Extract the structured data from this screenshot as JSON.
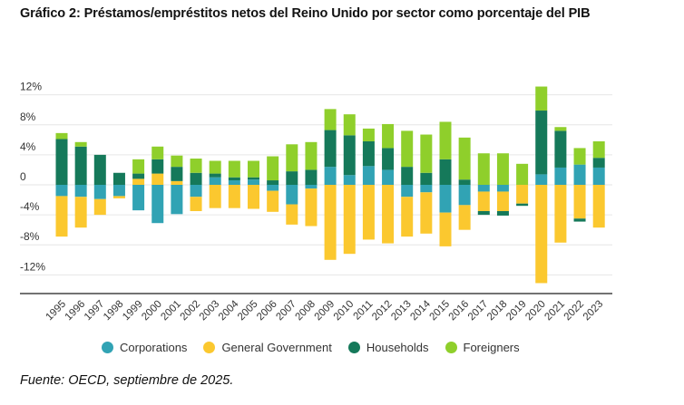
{
  "title": "Gráfico 2: Préstamos/empréstitos netos del Reino Unido por sector como porcentaje del PIB",
  "source": "Fuente: OECD, septiembre de 2025.",
  "colors": {
    "Corporations": "#31a3b4",
    "General Government": "#fbc82f",
    "Households": "#15795a",
    "Foreigners": "#8fcf2b",
    "grid": "#e6e6e6",
    "axis": "#444444"
  },
  "legend": [
    {
      "label": "Corporations",
      "key": "Corporations"
    },
    {
      "label": "General Government",
      "key": "General Government"
    },
    {
      "label": "Households",
      "key": "Households"
    },
    {
      "label": "Foreigners",
      "key": "Foreigners"
    }
  ],
  "chart_data": {
    "type": "bar",
    "stacked": true,
    "title": "Gráfico 2: Préstamos/empréstitos netos del Reino Unido por sector como porcentaje del PIB",
    "xlabel": "",
    "ylabel": "",
    "ylim": [
      -14,
      14
    ],
    "yticks": [
      12,
      8,
      4,
      0,
      -4,
      -8,
      -12
    ],
    "ytick_labels": [
      "12%",
      "8%",
      "4%",
      "0",
      "-4%",
      "-8%",
      "-12%"
    ],
    "grid": true,
    "legend_position": "bottom",
    "categories": [
      "1995",
      "1996",
      "1997",
      "1998",
      "1999",
      "2000",
      "2001",
      "2002",
      "2003",
      "2004",
      "2005",
      "2006",
      "2007",
      "2008",
      "2009",
      "2010",
      "2011",
      "2012",
      "2013",
      "2014",
      "2015",
      "2016",
      "2017",
      "2018",
      "2019",
      "2020",
      "2021",
      "2022",
      "2023"
    ],
    "series": [
      {
        "name": "Corporations",
        "values": [
          -1.5,
          -1.6,
          -1.9,
          -1.5,
          -3.4,
          -5.1,
          -3.9,
          -1.6,
          1.0,
          0.6,
          0.7,
          -0.8,
          -2.6,
          -0.5,
          2.4,
          1.3,
          2.5,
          2.0,
          -1.6,
          -1.0,
          -3.7,
          -2.7,
          -0.9,
          -0.9,
          0.0,
          1.4,
          2.3,
          2.7,
          2.3
        ]
      },
      {
        "name": "General Government",
        "values": [
          -5.4,
          -4.1,
          -2.1,
          -0.3,
          0.8,
          1.5,
          0.5,
          -1.9,
          -3.1,
          -3.1,
          -3.2,
          -2.8,
          -2.7,
          -5.0,
          -10.0,
          -9.2,
          -7.3,
          -7.8,
          -5.3,
          -5.5,
          -4.5,
          -3.3,
          -2.6,
          -2.6,
          -2.5,
          -13.1,
          -7.7,
          -4.5,
          -5.7
        ]
      },
      {
        "name": "Households",
        "values": [
          6.1,
          5.1,
          4.0,
          1.6,
          0.7,
          1.9,
          1.9,
          1.6,
          0.5,
          0.4,
          0.3,
          0.6,
          1.8,
          2.0,
          4.9,
          5.3,
          3.3,
          2.9,
          2.4,
          1.6,
          3.4,
          0.7,
          -0.5,
          -0.6,
          -0.3,
          8.5,
          4.9,
          -0.4,
          1.3
        ]
      },
      {
        "name": "Foreigners",
        "values": [
          0.8,
          0.6,
          0.0,
          0.0,
          1.9,
          1.7,
          1.5,
          1.9,
          1.7,
          2.2,
          2.2,
          3.2,
          3.6,
          3.7,
          2.8,
          2.8,
          1.7,
          3.2,
          4.8,
          5.1,
          5.0,
          5.6,
          4.2,
          4.2,
          2.8,
          3.2,
          0.5,
          2.2,
          2.2
        ]
      }
    ]
  }
}
